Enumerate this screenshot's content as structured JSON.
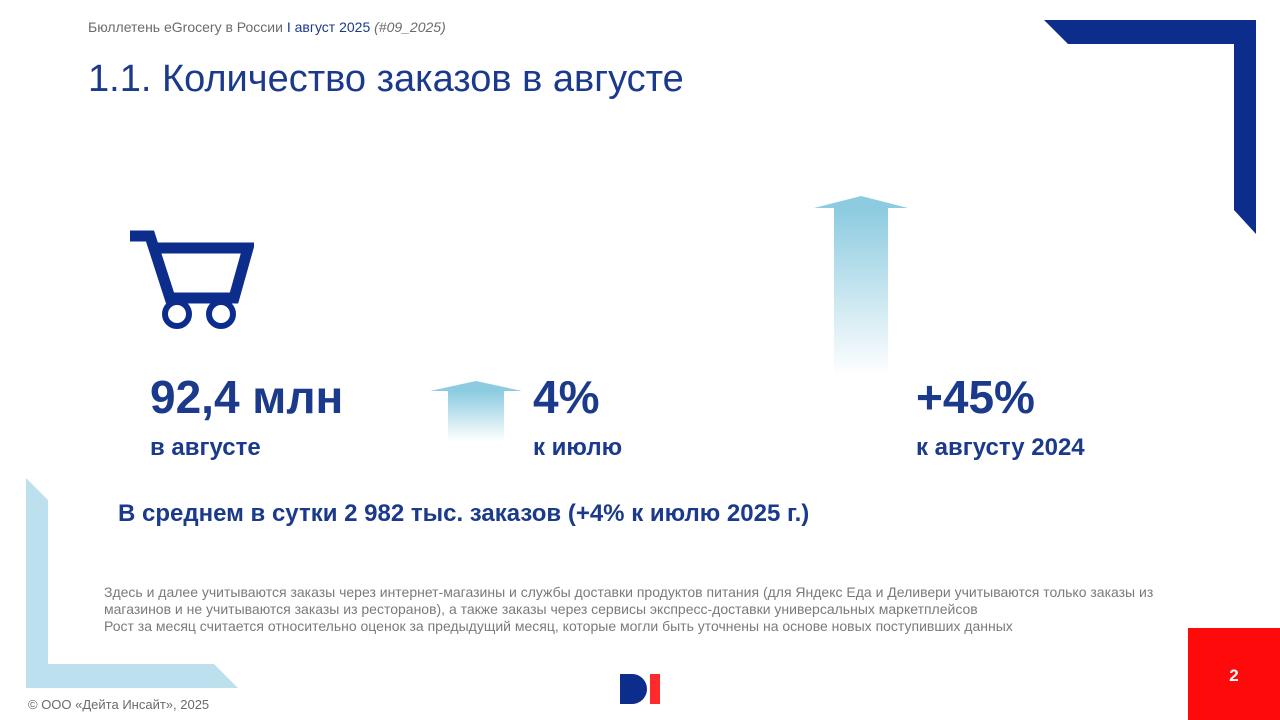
{
  "header": {
    "bulletin": "Бюллетень eGrocery в России",
    "separator": "I",
    "period": "август 2025",
    "code": "(#09_2025)"
  },
  "title": "1.1. Количество заказов в августе",
  "icons": {
    "cart": "shopping-cart-icon",
    "small_arrow": "up-arrow-icon",
    "large_arrow": "up-arrow-icon"
  },
  "metrics": {
    "total": {
      "value": "92,4 млн",
      "label": "в августе"
    },
    "mom": {
      "value": "4%",
      "label": "к июлю"
    },
    "yoy": {
      "value": "+45%",
      "label": "к августу 2024"
    }
  },
  "daily_average": "В среднем в сутки 2 982 тыс. заказов (+4% к июлю 2025 г.)",
  "notes": {
    "line1": "Здесь и далее учитываются заказы через интернет-магазины и службы доставки продуктов питания (для Яндекс Еда и Деливери учитываются только заказы из магазинов и не учитываются заказы из ресторанов), а также заказы через сервисы экспресс-доставки универсальных маркетплейсов",
    "line2": "Рост за месяц считается относительно оценок за предыдущий месяц, которые могли быть уточнены на основе новых поступивших данных"
  },
  "footer": {
    "copyright": "© ООО «Дейта Инсайт», 2025",
    "logo": "DI",
    "page_number": "2"
  },
  "colors": {
    "brand_blue": "#1b3a8c",
    "light_blue": "#bde0ef",
    "arrow_blue": "#8ccbe0",
    "accent_red": "#ff0a0a",
    "gray_text": "#7a7a7a"
  }
}
